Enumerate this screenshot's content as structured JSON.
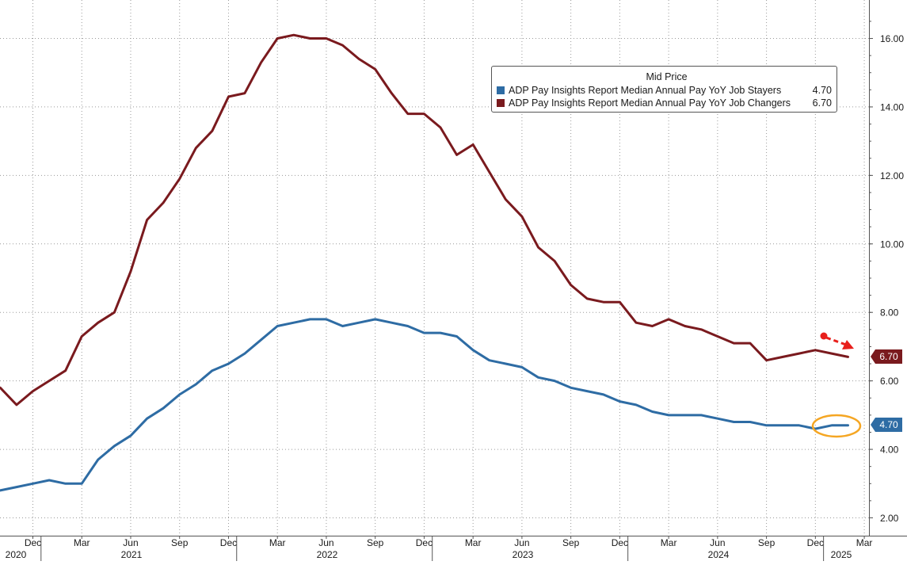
{
  "chart_data": {
    "type": "line",
    "title": "",
    "xlabel": "",
    "ylabel": "",
    "ylim": [
      1.6,
      17.0
    ],
    "y_ticks": [
      "2.00",
      "4.00",
      "6.00",
      "8.00",
      "10.00",
      "12.00",
      "14.00",
      "16.00"
    ],
    "grid": true,
    "legend_position": "top-right",
    "legend_title": "Mid Price",
    "month_ticks": [
      "Dec",
      "Mar",
      "Jun",
      "Sep",
      "Dec",
      "Mar",
      "Jun",
      "Sep",
      "Dec",
      "Mar",
      "Jun",
      "Sep",
      "Dec",
      "Mar",
      "Jun",
      "Sep",
      "Dec",
      "Mar"
    ],
    "year_labels": [
      "2020",
      "2021",
      "2022",
      "2023",
      "2024",
      "2025"
    ],
    "x": [
      "2020-10",
      "2020-11",
      "2020-12",
      "2021-01",
      "2021-02",
      "2021-03",
      "2021-04",
      "2021-05",
      "2021-06",
      "2021-07",
      "2021-08",
      "2021-09",
      "2021-10",
      "2021-11",
      "2021-12",
      "2022-01",
      "2022-02",
      "2022-03",
      "2022-04",
      "2022-05",
      "2022-06",
      "2022-07",
      "2022-08",
      "2022-09",
      "2022-10",
      "2022-11",
      "2022-12",
      "2023-01",
      "2023-02",
      "2023-03",
      "2023-04",
      "2023-05",
      "2023-06",
      "2023-07",
      "2023-08",
      "2023-09",
      "2023-10",
      "2023-11",
      "2023-12",
      "2024-01",
      "2024-02",
      "2024-03",
      "2024-04",
      "2024-05",
      "2024-06",
      "2024-07",
      "2024-08",
      "2024-09",
      "2024-10",
      "2024-11",
      "2024-12",
      "2025-01",
      "2025-02"
    ],
    "series": [
      {
        "name": "ADP Pay Insights Report Median Annual Pay YoY Job Stayers",
        "last_value": "4.70",
        "color": "#2e6ca4",
        "values": [
          2.8,
          2.9,
          3.0,
          3.1,
          3.0,
          3.0,
          3.7,
          4.1,
          4.4,
          4.9,
          5.2,
          5.6,
          5.9,
          6.3,
          6.5,
          6.8,
          7.2,
          7.6,
          7.7,
          7.8,
          7.8,
          7.6,
          7.7,
          7.8,
          7.7,
          7.6,
          7.4,
          7.4,
          7.3,
          6.9,
          6.6,
          6.5,
          6.4,
          6.1,
          6.0,
          5.8,
          5.7,
          5.6,
          5.4,
          5.3,
          5.1,
          5.0,
          5.0,
          5.0,
          4.9,
          4.8,
          4.8,
          4.7,
          4.7,
          4.7,
          4.6,
          4.7,
          4.7
        ]
      },
      {
        "name": "ADP Pay Insights Report Median Annual Pay YoY Job Changers",
        "last_value": "6.70",
        "color": "#7a1a1e",
        "values": [
          5.8,
          5.3,
          5.7,
          6.0,
          6.3,
          7.3,
          7.7,
          8.0,
          9.2,
          10.7,
          11.2,
          11.9,
          12.8,
          13.3,
          14.3,
          14.4,
          15.3,
          16.0,
          16.1,
          16.0,
          16.0,
          15.8,
          15.4,
          15.1,
          14.4,
          13.8,
          13.8,
          13.4,
          12.6,
          12.9,
          12.1,
          11.3,
          10.8,
          9.9,
          9.5,
          8.8,
          8.4,
          8.3,
          8.3,
          7.7,
          7.6,
          7.8,
          7.6,
          7.5,
          7.3,
          7.1,
          7.1,
          6.6,
          6.7,
          6.8,
          6.9,
          6.8,
          6.7
        ]
      }
    ]
  },
  "annotations": {
    "arrow_color": "#e8201c",
    "circle_color": "#f5a623"
  }
}
